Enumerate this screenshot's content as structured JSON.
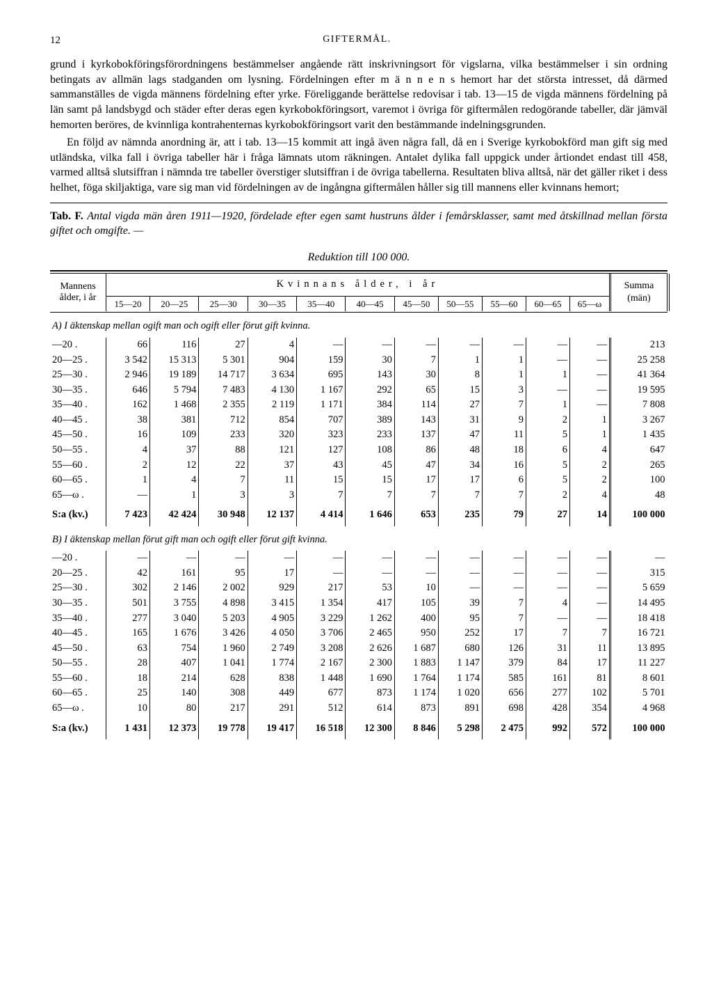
{
  "page_number": "12",
  "running_head": "GIFTERMÅL.",
  "paragraphs": {
    "p1": "grund i kyrkobokföringsförordningens bestämmelser angående rätt inskrivningsort för vigslarna, vilka bestämmelser i sin ordning betingats av allmän lags stadganden om lysning. Fördelningen efter m ä n n e n s hemort har det största intresset, då därmed sammanställes de vigda männens fördelning efter yrke. Föreliggande berättelse redovisar i tab. 13—15 de vigda männens fördelning på län samt på landsbygd och städer efter deras egen kyrkobokföringsort, varemot i övriga för giftermålen redogörande tabeller, där jämväl hemorten beröres, de kvinnliga kontrahenternas kyrkobokföringsort varit den bestämmande indelningsgrunden.",
    "p2": "En följd av nämnda anordning är, att i tab. 13—15 kommit att ingå även några fall, då en i Sverige kyrkobokförd man gift sig med utländska, vilka fall i övriga tabeller här i fråga lämnats utom räkningen. Antalet dylika fall uppgick under årtiondet endast till 458, varmed alltså slutsiffran i nämnda tre tabeller överstiger slutsiffran i de övriga tabellerna. Resultaten bliva alltså, när det gäller riket i dess helhet, föga skiljaktiga, vare sig man vid fördelningen av de ingångna giftermålen håller sig till mannens eller kvinnans hemort;"
  },
  "caption": {
    "lead": "Tab. F.",
    "text": "Antal vigda män åren 1911—1920, fördelade efter egen samt hustruns ålder i femårsklasser, samt med åtskillnad mellan första giftet och omgifte. —",
    "center": "Reduktion till 100 000."
  },
  "columns": {
    "row_label_1": "Mannens",
    "row_label_2": "ålder, i år",
    "group_label": "Kvinnans ålder, i år",
    "summa1": "Summa",
    "summa2": "(män)",
    "age_bins": [
      "15—20",
      "20—25",
      "25—30",
      "30—35",
      "35—40",
      "40—45",
      "45—50",
      "50—55",
      "55—60",
      "60—65",
      "65—ω"
    ]
  },
  "sectionA": "A) I äktenskap mellan ogift man och ogift eller förut gift kvinna.",
  "sectionB": "B) I äktenskap mellan förut gift man och ogift eller förut gift kvinna.",
  "row_labels": [
    "—20 .",
    "20—25 .",
    "25—30 .",
    "30—35 .",
    "35—40 .",
    "40—45 .",
    "45—50 .",
    "50—55 .",
    "55—60 .",
    "60—65 .",
    "65—ω ."
  ],
  "sum_label": "S:a (kv.)",
  "tableA": {
    "rows": [
      [
        "66",
        "116",
        "27",
        "4",
        "—",
        "—",
        "—",
        "—",
        "—",
        "—",
        "—",
        "213"
      ],
      [
        "3 542",
        "15 313",
        "5 301",
        "904",
        "159",
        "30",
        "7",
        "1",
        "1",
        "—",
        "—",
        "25 258"
      ],
      [
        "2 946",
        "19 189",
        "14 717",
        "3 634",
        "695",
        "143",
        "30",
        "8",
        "1",
        "1",
        "—",
        "41 364"
      ],
      [
        "646",
        "5 794",
        "7 483",
        "4 130",
        "1 167",
        "292",
        "65",
        "15",
        "3",
        "—",
        "—",
        "19 595"
      ],
      [
        "162",
        "1 468",
        "2 355",
        "2 119",
        "1 171",
        "384",
        "114",
        "27",
        "7",
        "1",
        "—",
        "7 808"
      ],
      [
        "38",
        "381",
        "712",
        "854",
        "707",
        "389",
        "143",
        "31",
        "9",
        "2",
        "1",
        "3 267"
      ],
      [
        "16",
        "109",
        "233",
        "320",
        "323",
        "233",
        "137",
        "47",
        "11",
        "5",
        "1",
        "1 435"
      ],
      [
        "4",
        "37",
        "88",
        "121",
        "127",
        "108",
        "86",
        "48",
        "18",
        "6",
        "4",
        "647"
      ],
      [
        "2",
        "12",
        "22",
        "37",
        "43",
        "45",
        "47",
        "34",
        "16",
        "5",
        "2",
        "265"
      ],
      [
        "1",
        "4",
        "7",
        "11",
        "15",
        "15",
        "17",
        "17",
        "6",
        "5",
        "2",
        "100"
      ],
      [
        "—",
        "1",
        "3",
        "3",
        "7",
        "7",
        "7",
        "7",
        "7",
        "2",
        "4",
        "48"
      ]
    ],
    "sum": [
      "7 423",
      "42 424",
      "30 948",
      "12 137",
      "4 414",
      "1 646",
      "653",
      "235",
      "79",
      "27",
      "14",
      "100 000"
    ]
  },
  "tableB": {
    "rows": [
      [
        "—",
        "—",
        "—",
        "—",
        "—",
        "—",
        "—",
        "—",
        "—",
        "—",
        "—",
        "—"
      ],
      [
        "42",
        "161",
        "95",
        "17",
        "—",
        "—",
        "—",
        "—",
        "—",
        "—",
        "—",
        "315"
      ],
      [
        "302",
        "2 146",
        "2 002",
        "929",
        "217",
        "53",
        "10",
        "—",
        "—",
        "—",
        "—",
        "5 659"
      ],
      [
        "501",
        "3 755",
        "4 898",
        "3 415",
        "1 354",
        "417",
        "105",
        "39",
        "7",
        "4",
        "—",
        "14 495"
      ],
      [
        "277",
        "3 040",
        "5 203",
        "4 905",
        "3 229",
        "1 262",
        "400",
        "95",
        "7",
        "—",
        "—",
        "18 418"
      ],
      [
        "165",
        "1 676",
        "3 426",
        "4 050",
        "3 706",
        "2 465",
        "950",
        "252",
        "17",
        "7",
        "7",
        "16 721"
      ],
      [
        "63",
        "754",
        "1 960",
        "2 749",
        "3 208",
        "2 626",
        "1 687",
        "680",
        "126",
        "31",
        "11",
        "13 895"
      ],
      [
        "28",
        "407",
        "1 041",
        "1 774",
        "2 167",
        "2 300",
        "1 883",
        "1 147",
        "379",
        "84",
        "17",
        "11 227"
      ],
      [
        "18",
        "214",
        "628",
        "838",
        "1 448",
        "1 690",
        "1 764",
        "1 174",
        "585",
        "161",
        "81",
        "8 601"
      ],
      [
        "25",
        "140",
        "308",
        "449",
        "677",
        "873",
        "1 174",
        "1 020",
        "656",
        "277",
        "102",
        "5 701"
      ],
      [
        "10",
        "80",
        "217",
        "291",
        "512",
        "614",
        "873",
        "891",
        "698",
        "428",
        "354",
        "4 968"
      ]
    ],
    "sum": [
      "1 431",
      "12 373",
      "19 778",
      "19 417",
      "16 518",
      "12 300",
      "8 846",
      "5 298",
      "2 475",
      "992",
      "572",
      "100 000"
    ]
  }
}
